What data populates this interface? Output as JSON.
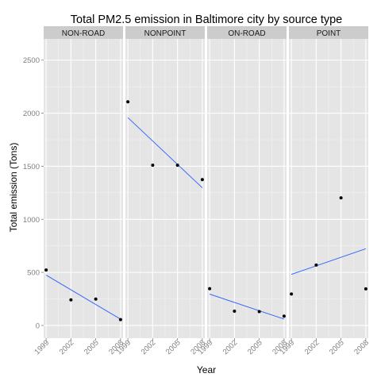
{
  "chart_data": {
    "type": "scatter",
    "title": "Total PM2.5 emission in Baltimore city by source type",
    "xlabel": "Year",
    "ylabel": "Total emission (Tons)",
    "x_ticks": [
      "1999",
      "2002",
      "2005",
      "2008"
    ],
    "y_ticks": [
      "0",
      "500",
      "1000",
      "1500",
      "2000",
      "2500"
    ],
    "xlim": [
      1998.7,
      2008.3
    ],
    "ylim": [
      -120,
      2700
    ],
    "grid": true,
    "facets": [
      {
        "name": "NON-ROAD",
        "points": [
          [
            1999,
            522
          ],
          [
            2002,
            241
          ],
          [
            2005,
            248
          ],
          [
            2008,
            55
          ]
        ],
        "trend": [
          [
            1999,
            474
          ],
          [
            2008,
            59
          ]
        ]
      },
      {
        "name": "NONPOINT",
        "points": [
          [
            1999,
            2107
          ],
          [
            2002,
            1510
          ],
          [
            2005,
            1510
          ],
          [
            2008,
            1374
          ]
        ],
        "trend": [
          [
            1999,
            1958
          ],
          [
            2008,
            1297
          ]
        ]
      },
      {
        "name": "ON-ROAD",
        "points": [
          [
            1999,
            347
          ],
          [
            2002,
            134
          ],
          [
            2005,
            131
          ],
          [
            2008,
            88
          ]
        ],
        "trend": [
          [
            1999,
            295
          ],
          [
            2008,
            60
          ]
        ]
      },
      {
        "name": "POINT",
        "points": [
          [
            1999,
            296
          ],
          [
            2002,
            569
          ],
          [
            2005,
            1202
          ],
          [
            2008,
            345
          ]
        ],
        "trend": [
          [
            1999,
            481
          ],
          [
            2008,
            723
          ]
        ]
      }
    ],
    "colors": {
      "panel_bg": "#e5e5e5",
      "strip_bg": "#cccccc",
      "grid_major": "#ffffff",
      "grid_minor": "#f2f2f2",
      "point": "#000000",
      "trend": "#3366ff",
      "tick_text": "#7f7f7f"
    }
  }
}
